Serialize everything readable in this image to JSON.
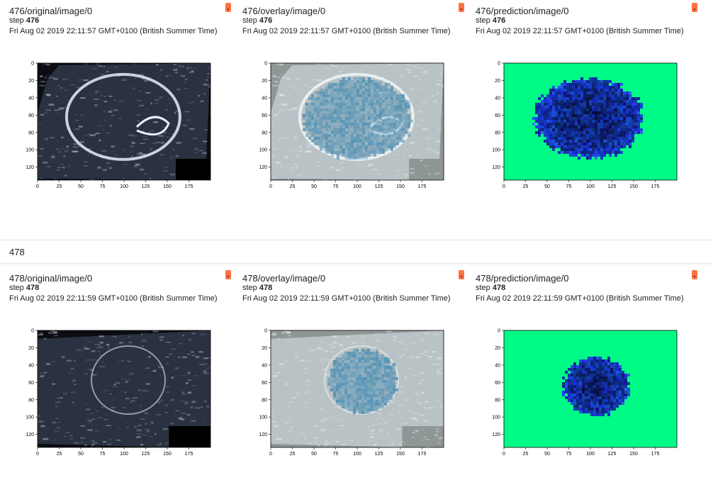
{
  "groups": [
    {
      "cards": [
        {
          "title": "476/original/image/0",
          "step_prefix": "step",
          "step": "476",
          "timestamp": "Fri Aug 02 2019 22:11:57 GMT+0100 (British Summer Time)",
          "kind": "original"
        },
        {
          "title": "476/overlay/image/0",
          "step_prefix": "step",
          "step": "476",
          "timestamp": "Fri Aug 02 2019 22:11:57 GMT+0100 (British Summer Time)",
          "kind": "overlay"
        },
        {
          "title": "476/prediction/image/0",
          "step_prefix": "step",
          "step": "476",
          "timestamp": "Fri Aug 02 2019 22:11:57 GMT+0100 (British Summer Time)",
          "kind": "prediction"
        }
      ]
    },
    {
      "label": "478",
      "cards": [
        {
          "title": "478/original/image/0",
          "step_prefix": "step",
          "step": "478",
          "timestamp": "Fri Aug 02 2019 22:11:59 GMT+0100 (British Summer Time)",
          "kind": "original"
        },
        {
          "title": "478/overlay/image/0",
          "step_prefix": "step",
          "step": "478",
          "timestamp": "Fri Aug 02 2019 22:11:59 GMT+0100 (British Summer Time)",
          "kind": "overlay"
        },
        {
          "title": "478/prediction/image/0",
          "step_prefix": "step",
          "step": "478",
          "timestamp": "Fri Aug 02 2019 22:11:59 GMT+0100 (British Summer Time)",
          "kind": "prediction"
        }
      ]
    }
  ],
  "axes": {
    "x_ticks": [
      "0",
      "25",
      "50",
      "75",
      "100",
      "125",
      "150",
      "175"
    ],
    "y_ticks": [
      "0",
      "20",
      "40",
      "60",
      "80",
      "100",
      "120"
    ]
  },
  "colors": {
    "badge": "#ff7043",
    "prediction_background": "#00fa86",
    "prediction_blob": "#1a3fd6",
    "overlay_tint": "#2a7fb0"
  },
  "icons": {
    "badge": "pin-icon"
  }
}
